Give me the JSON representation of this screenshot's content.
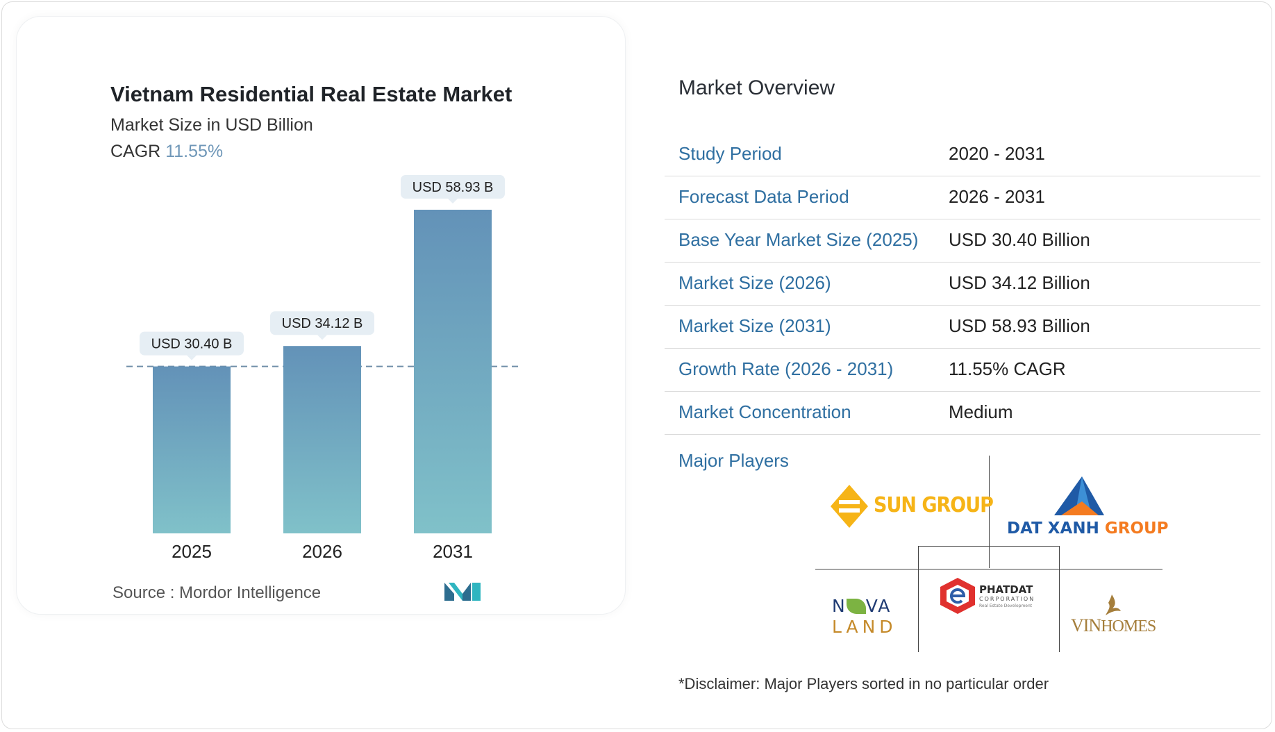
{
  "chart": {
    "title": "Vietnam Residential Real Estate Market",
    "subtitle": "Market Size in USD Billion",
    "cagr_label": "CAGR",
    "cagr_value": "11.55%",
    "source": "Source :  Mordor Intelligence"
  },
  "chart_data": {
    "type": "bar",
    "title": "Vietnam Residential Real Estate Market",
    "subtitle": "Market Size in USD Billion",
    "categories": [
      "2025",
      "2026",
      "2031"
    ],
    "values": [
      30.4,
      34.12,
      58.93
    ],
    "data_labels": [
      "USD 30.40 B",
      "USD 34.12 B",
      "USD 58.93 B"
    ],
    "reference_line": 30.4,
    "bar_gradient": [
      "#6392b8",
      "#80c1c9"
    ],
    "xlabel": "",
    "ylabel": "",
    "ylim": [
      0,
      62
    ]
  },
  "overview": {
    "title": "Market Overview",
    "rows": [
      {
        "label": "Study Period",
        "value": "2020 - 2031"
      },
      {
        "label": "Forecast Data Period",
        "value": "2026 - 2031"
      },
      {
        "label": "Base Year Market Size (2025)",
        "value": "USD 30.40 Billion"
      },
      {
        "label": "Market Size (2026)",
        "value": "USD 34.12 Billion"
      },
      {
        "label": "Market Size (2031)",
        "value": "USD 58.93 Billion"
      },
      {
        "label": "Growth Rate (2026 - 2031)",
        "value": "11.55% CAGR"
      },
      {
        "label": "Market Concentration",
        "value": "Medium"
      }
    ],
    "players_label": "Major Players",
    "players": {
      "sun": "SUN GROUP",
      "datxanh_1": "DAT XANH",
      "datxanh_2": " GROUP",
      "nova_1": "N",
      "nova_2": "VA",
      "nova_3": "LAND",
      "phatdat_1": "PHATDAT",
      "phatdat_2": "CORPORATION",
      "phatdat_3": "Real Estate Development",
      "vin_1": "VIN",
      "vin_2": "HOMES"
    },
    "disclaimer": "*Disclaimer: Major Players sorted in no particular order"
  },
  "colors": {
    "label_blue": "#2f6fa1",
    "cagr_blue": "#6f97b8",
    "sun_yellow": "#f6b417",
    "datxanh_blue": "#1f5aa6",
    "datxanh_orange": "#f47b20",
    "phatdat_red": "#e0312e",
    "vin_gold": "#a57e3b"
  }
}
